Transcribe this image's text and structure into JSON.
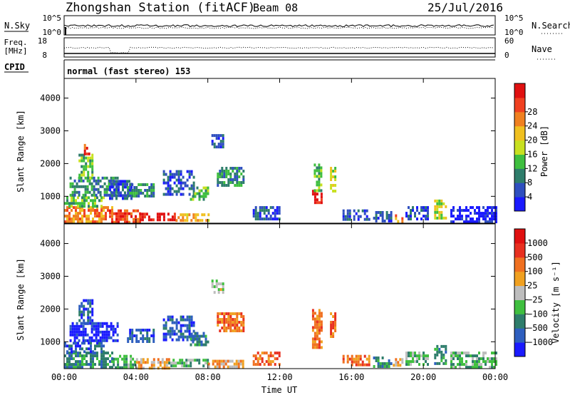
{
  "header": {
    "station": "Zhongshan Station (fitACF)",
    "beam": "Beam 08",
    "date": "25/Jul/2016"
  },
  "noise_panel": {
    "left_label": "N.Sky",
    "left_ticks": [
      "10^5",
      "10^0"
    ],
    "right_label": "N.Search",
    "right_ticks": [
      "10^5",
      "10^0"
    ]
  },
  "freq_panel": {
    "left_label_line1": "Freq.",
    "left_label_line2": "[MHz]",
    "left_ticks": [
      "18",
      "8"
    ],
    "right_label": "Nave",
    "right_ticks": [
      "60",
      "0"
    ]
  },
  "cpid": {
    "label": "CPID",
    "value": "normal (fast stereo) 153"
  },
  "chart_data": [
    {
      "type": "heatmap",
      "quantity": "Power",
      "ylabel": "Slant Range [km]",
      "colorbar_label": "Power [dB]",
      "colorbar_ticks": [
        "28",
        "24",
        "20",
        "16",
        "12",
        "8",
        "4"
      ],
      "ylim": [
        180,
        4600
      ],
      "y_ticks": [
        "4000",
        "3000",
        "2000",
        "1000"
      ],
      "y_tick_values": [
        4000,
        3000,
        2000,
        1000
      ],
      "colors": [
        "#1a1aff",
        "#2f4fbf",
        "#2e7d6b",
        "#3fbf3f",
        "#c8e020",
        "#f0c020",
        "#f08020",
        "#f04020",
        "#e01010"
      ],
      "regions": [
        {
          "t": [
            0.0,
            2.7
          ],
          "r": [
            250,
            700
          ],
          "level": 6
        },
        {
          "t": [
            2.5,
            4.2
          ],
          "r": [
            250,
            600
          ],
          "level": 7
        },
        {
          "t": [
            4.2,
            6.2
          ],
          "r": [
            250,
            500
          ],
          "level": 8
        },
        {
          "t": [
            6.2,
            8.0
          ],
          "r": [
            250,
            480
          ],
          "level": 5
        },
        {
          "t": [
            0.0,
            2.2
          ],
          "r": [
            700,
            1000
          ],
          "level": 3
        },
        {
          "t": [
            0.3,
            3.0
          ],
          "r": [
            1000,
            1600
          ],
          "level": 2
        },
        {
          "t": [
            0.8,
            1.6
          ],
          "r": [
            1600,
            2300
          ],
          "level": 3
        },
        {
          "t": [
            1.1,
            1.4
          ],
          "r": [
            2300,
            2600
          ],
          "level": 7
        },
        {
          "t": [
            2.5,
            3.8
          ],
          "r": [
            900,
            1500
          ],
          "level": 1
        },
        {
          "t": [
            3.5,
            5.0
          ],
          "r": [
            1000,
            1400
          ],
          "level": 2
        },
        {
          "t": [
            5.5,
            7.2
          ],
          "r": [
            1100,
            1800
          ],
          "level": 1
        },
        {
          "t": [
            7.0,
            8.0
          ],
          "r": [
            900,
            1300
          ],
          "level": 3
        },
        {
          "t": [
            8.2,
            8.9
          ],
          "r": [
            2500,
            2900
          ],
          "level": 1
        },
        {
          "t": [
            8.5,
            10.0
          ],
          "r": [
            1300,
            1900
          ],
          "level": 2
        },
        {
          "t": [
            13.8,
            14.3
          ],
          "r": [
            800,
            1200
          ],
          "level": 8
        },
        {
          "t": [
            13.9,
            14.3
          ],
          "r": [
            1200,
            2000
          ],
          "level": 3
        },
        {
          "t": [
            14.8,
            15.1
          ],
          "r": [
            1200,
            1900
          ],
          "level": 4
        },
        {
          "t": [
            17.2,
            18.2
          ],
          "r": [
            250,
            550
          ],
          "level": 1
        },
        {
          "t": [
            18.3,
            18.8
          ],
          "r": [
            250,
            450
          ],
          "level": 6
        },
        {
          "t": [
            19.0,
            20.3
          ],
          "r": [
            300,
            700
          ],
          "level": 1
        },
        {
          "t": [
            20.6,
            21.2
          ],
          "r": [
            350,
            900
          ],
          "level": 4
        },
        {
          "t": [
            21.5,
            24.0
          ],
          "r": [
            250,
            700
          ],
          "level": 0
        },
        {
          "t": [
            10.5,
            12.0
          ],
          "r": [
            300,
            700
          ],
          "level": 1
        },
        {
          "t": [
            15.5,
            17.0
          ],
          "r": [
            300,
            600
          ],
          "level": 1
        }
      ]
    },
    {
      "type": "heatmap",
      "quantity": "Velocity",
      "ylabel": "Slant Range [km]",
      "colorbar_label": "Velocity [m s⁻¹]",
      "colorbar_ticks": [
        "1000",
        "500",
        "100",
        "25",
        "−25",
        "−100",
        "−500",
        "−1000"
      ],
      "ylim": [
        180,
        4600
      ],
      "y_ticks": [
        "4000",
        "3000",
        "2000",
        "1000"
      ],
      "y_tick_values": [
        4000,
        3000,
        2000,
        1000
      ],
      "colors": [
        "#1a1aff",
        "#2e5fbf",
        "#2e7d6b",
        "#3fbf3f",
        "#bdbdbd",
        "#f0a020",
        "#f07020",
        "#e83020",
        "#e01010"
      ],
      "regions": [
        {
          "t": [
            0.0,
            2.7
          ],
          "r": [
            250,
            700
          ],
          "level": 2
        },
        {
          "t": [
            2.7,
            4.0
          ],
          "r": [
            250,
            600
          ],
          "level": 3
        },
        {
          "t": [
            4.0,
            5.8
          ],
          "r": [
            200,
            500
          ],
          "level": 5
        },
        {
          "t": [
            5.8,
            8.0
          ],
          "r": [
            250,
            480
          ],
          "level": 3
        },
        {
          "t": [
            8.0,
            10.0
          ],
          "r": [
            250,
            450
          ],
          "level": 5
        },
        {
          "t": [
            0.0,
            2.2
          ],
          "r": [
            700,
            1000
          ],
          "level": 1
        },
        {
          "t": [
            0.3,
            3.0
          ],
          "r": [
            1000,
            1600
          ],
          "level": 0
        },
        {
          "t": [
            0.8,
            1.6
          ],
          "r": [
            1600,
            2300
          ],
          "level": 1
        },
        {
          "t": [
            3.5,
            5.0
          ],
          "r": [
            1000,
            1400
          ],
          "level": 1
        },
        {
          "t": [
            5.5,
            7.2
          ],
          "r": [
            1100,
            1800
          ],
          "level": 1
        },
        {
          "t": [
            7.0,
            8.0
          ],
          "r": [
            900,
            1300
          ],
          "level": 2
        },
        {
          "t": [
            8.2,
            8.9
          ],
          "r": [
            2500,
            2900
          ],
          "level": 4
        },
        {
          "t": [
            8.5,
            10.0
          ],
          "r": [
            1300,
            1900
          ],
          "level": 6
        },
        {
          "t": [
            13.8,
            14.3
          ],
          "r": [
            800,
            2000
          ],
          "level": 6
        },
        {
          "t": [
            14.8,
            15.1
          ],
          "r": [
            1200,
            1900
          ],
          "level": 6
        },
        {
          "t": [
            10.5,
            12.0
          ],
          "r": [
            300,
            700
          ],
          "level": 6
        },
        {
          "t": [
            15.5,
            17.0
          ],
          "r": [
            300,
            600
          ],
          "level": 6
        },
        {
          "t": [
            17.2,
            18.2
          ],
          "r": [
            250,
            550
          ],
          "level": 2
        },
        {
          "t": [
            18.3,
            18.8
          ],
          "r": [
            250,
            500
          ],
          "level": 5
        },
        {
          "t": [
            19.0,
            20.3
          ],
          "r": [
            300,
            700
          ],
          "level": 3
        },
        {
          "t": [
            20.6,
            21.2
          ],
          "r": [
            350,
            900
          ],
          "level": 2
        },
        {
          "t": [
            21.5,
            24.0
          ],
          "r": [
            250,
            700
          ],
          "level": 3
        }
      ]
    }
  ],
  "x_axis": {
    "label": "Time UT",
    "ticks": [
      "00:00",
      "04:00",
      "08:00",
      "12:00",
      "16:00",
      "20:00",
      "00:00"
    ],
    "tick_values": [
      0,
      4,
      8,
      12,
      16,
      20,
      24
    ],
    "xlim": [
      0,
      24
    ]
  }
}
